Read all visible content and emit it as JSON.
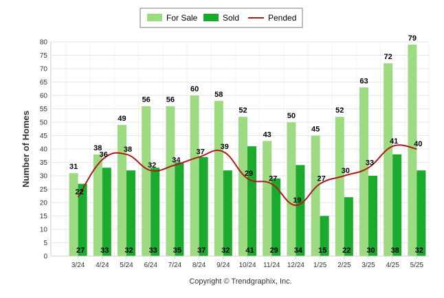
{
  "chart_data": {
    "type": "bar",
    "categories": [
      "3/24",
      "4/24",
      "5/24",
      "6/24",
      "7/24",
      "8/24",
      "9/24",
      "10/24",
      "11/24",
      "12/24",
      "1/25",
      "2/25",
      "3/25",
      "4/25",
      "5/25"
    ],
    "series": [
      {
        "name": "For Sale",
        "type": "bar",
        "color": "#9ddb83",
        "values": [
          31,
          38,
          49,
          56,
          56,
          60,
          58,
          52,
          43,
          50,
          45,
          52,
          63,
          72,
          79
        ]
      },
      {
        "name": "Sold",
        "type": "bar",
        "color": "#1aaa2e",
        "values": [
          27,
          33,
          32,
          33,
          35,
          37,
          32,
          41,
          29,
          34,
          15,
          22,
          30,
          38,
          32
        ]
      },
      {
        "name": "Pended",
        "type": "line",
        "color": "#b01818",
        "values": [
          22,
          36,
          38,
          32,
          34,
          37,
          39,
          29,
          27,
          19,
          27,
          30,
          33,
          41,
          40
        ]
      }
    ],
    "title": "",
    "xlabel": "",
    "ylabel": "Number of Homes",
    "ylim": [
      0,
      80
    ],
    "yticks": [
      0,
      5,
      10,
      15,
      20,
      25,
      30,
      35,
      40,
      45,
      50,
      55,
      60,
      65,
      70,
      75,
      80
    ],
    "grid": true,
    "legend_position": "top-center"
  },
  "credit": "Copyright © Trendgraphix, Inc."
}
